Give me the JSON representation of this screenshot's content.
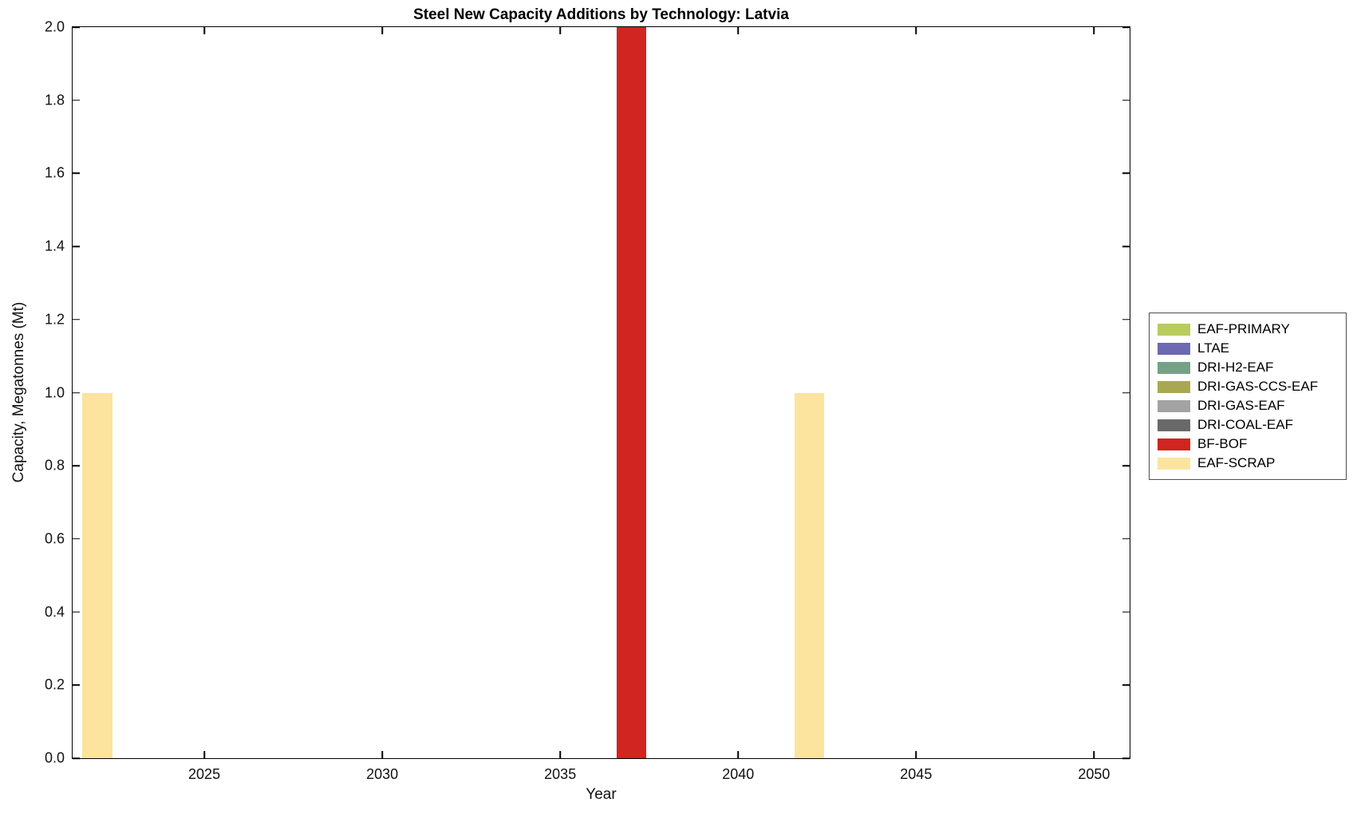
{
  "chart_data": {
    "type": "bar",
    "title": "Steel New Capacity Additions by Technology: Latvia",
    "xlabel": "Year",
    "ylabel": "Capacity, Megatonnes (Mt)",
    "xlim": [
      2021.3,
      2051.0
    ],
    "ylim": [
      0,
      2.0
    ],
    "x_ticks": [
      2025,
      2030,
      2035,
      2040,
      2045,
      2050
    ],
    "y_tick_labels": [
      "0.0",
      "0.2",
      "0.4",
      "0.6",
      "0.8",
      "1.0",
      "1.2",
      "1.4",
      "1.6",
      "1.8",
      "2.0"
    ],
    "bar_width_years": 0.84,
    "grid": false,
    "legend_position": "right-outside",
    "axis_color": "#000000",
    "background_color": "#ffffff",
    "series": [
      {
        "name": "EAF-PRIMARY",
        "color": "#b8cc5e",
        "points": []
      },
      {
        "name": "LTAE",
        "color": "#6e68b2",
        "points": []
      },
      {
        "name": "DRI-H2-EAF",
        "color": "#75a287",
        "points": []
      },
      {
        "name": "DRI-GAS-CCS-EAF",
        "color": "#a9a852",
        "points": []
      },
      {
        "name": "DRI-GAS-EAF",
        "color": "#a3a3a3",
        "points": []
      },
      {
        "name": "DRI-COAL-EAF",
        "color": "#696969",
        "points": []
      },
      {
        "name": "BF-BOF",
        "color": "#d02520",
        "points": [
          {
            "x": 2037,
            "y": 2.0
          }
        ]
      },
      {
        "name": "EAF-SCRAP",
        "color": "#fce49e",
        "points": [
          {
            "x": 2022,
            "y": 1.0
          },
          {
            "x": 2042,
            "y": 1.0
          }
        ]
      }
    ]
  }
}
